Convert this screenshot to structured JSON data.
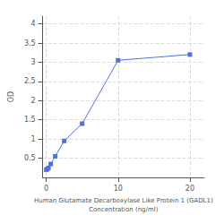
{
  "chart_data": {
    "type": "line",
    "x": [
      0,
      0.156,
      0.3125,
      0.625,
      1.25,
      2.5,
      5,
      10,
      20
    ],
    "values": [
      0.2,
      0.22,
      0.25,
      0.35,
      0.55,
      0.95,
      1.4,
      3.05,
      3.2
    ],
    "marker": "square",
    "xlabel": "Human Glutamate Decarboxylase Like Protein 1 (GADL1)\nConcentration (ng/ml)",
    "ylabel": "OD",
    "xlim": [
      -0.5,
      22
    ],
    "xticks": [
      0,
      10,
      20
    ],
    "ylim": [
      0,
      4.2
    ],
    "yticks": [
      0.5,
      1,
      1.5,
      2,
      2.5,
      3,
      3.5,
      4
    ],
    "grid": true
  }
}
